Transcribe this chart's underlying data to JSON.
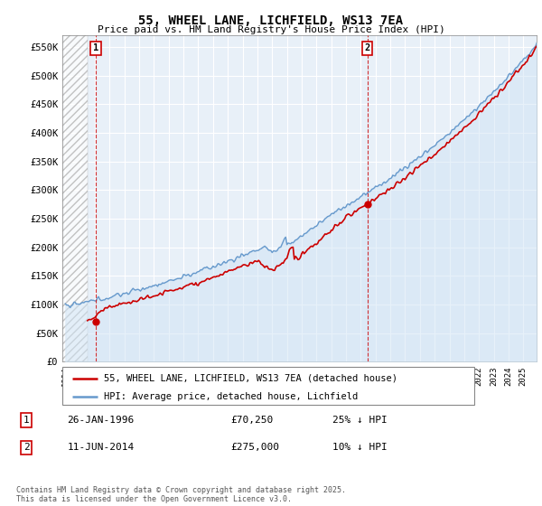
{
  "title": "55, WHEEL LANE, LICHFIELD, WS13 7EA",
  "subtitle": "Price paid vs. HM Land Registry's House Price Index (HPI)",
  "ylim": [
    0,
    570000
  ],
  "yticks": [
    0,
    50000,
    100000,
    150000,
    200000,
    250000,
    300000,
    350000,
    400000,
    450000,
    500000,
    550000
  ],
  "ytick_labels": [
    "£0",
    "£50K",
    "£100K",
    "£150K",
    "£200K",
    "£250K",
    "£300K",
    "£350K",
    "£400K",
    "£450K",
    "£500K",
    "£550K"
  ],
  "hpi_color": "#6699cc",
  "hpi_fill_color": "#d0e4f5",
  "price_color": "#cc0000",
  "marker1_date": 1996.07,
  "marker2_date": 2014.44,
  "marker1_price": 70250,
  "marker2_price": 275000,
  "legend_line1": "55, WHEEL LANE, LICHFIELD, WS13 7EA (detached house)",
  "legend_line2": "HPI: Average price, detached house, Lichfield",
  "footer": "Contains HM Land Registry data © Crown copyright and database right 2025.\nThis data is licensed under the Open Government Licence v3.0.",
  "background_color": "#ffffff",
  "plot_bg_color": "#e8f0f8",
  "grid_color": "#ffffff"
}
